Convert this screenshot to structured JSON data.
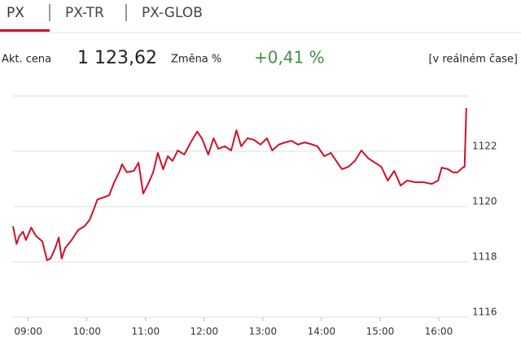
{
  "tabs": [
    "PX",
    "PX-TR",
    "PX-GLOB"
  ],
  "quote": {
    "price_label": "Akt. cena",
    "price": "1 123,62",
    "change_label": "Změna %",
    "change": "+0,41 %",
    "realtime": "[v reálném čase]"
  },
  "chart_data": {
    "type": "line",
    "color": "#d0102a",
    "grid": true,
    "x": [
      8.74,
      8.8,
      8.85,
      8.91,
      8.96,
      9.05,
      9.13,
      9.24,
      9.32,
      9.38,
      9.46,
      9.52,
      9.57,
      9.63,
      9.74,
      9.85,
      9.96,
      10.05,
      10.13,
      10.18,
      10.27,
      10.38,
      10.46,
      10.55,
      10.6,
      10.68,
      10.8,
      10.88,
      10.96,
      11.05,
      11.13,
      11.21,
      11.3,
      11.38,
      11.46,
      11.55,
      11.66,
      11.77,
      11.88,
      11.96,
      12.07,
      12.16,
      12.24,
      12.35,
      12.46,
      12.55,
      12.63,
      12.74,
      12.85,
      12.96,
      13.07,
      13.16,
      13.27,
      13.38,
      13.49,
      13.6,
      13.71,
      13.82,
      13.93,
      14.05,
      14.16,
      14.27,
      14.35,
      14.46,
      14.57,
      14.68,
      14.8,
      14.91,
      15.02,
      15.13,
      15.24,
      15.35,
      15.46,
      15.6,
      15.74,
      15.88,
      15.99,
      16.05,
      16.16,
      16.24,
      16.32,
      16.41,
      16.44,
      16.47
    ],
    "values": [
      1119.29,
      1118.65,
      1118.94,
      1119.09,
      1118.79,
      1119.24,
      1118.94,
      1118.74,
      1118.06,
      1118.12,
      1118.5,
      1118.88,
      1118.12,
      1118.5,
      1118.79,
      1119.15,
      1119.29,
      1119.53,
      1119.97,
      1120.26,
      1120.32,
      1120.41,
      1120.85,
      1121.24,
      1121.53,
      1121.24,
      1121.29,
      1121.59,
      1120.47,
      1120.85,
      1121.24,
      1121.94,
      1121.35,
      1121.82,
      1121.65,
      1122.03,
      1121.88,
      1122.32,
      1122.71,
      1122.47,
      1121.88,
      1122.47,
      1122.09,
      1122.18,
      1122.03,
      1122.76,
      1122.18,
      1122.47,
      1122.41,
      1122.24,
      1122.47,
      1122.03,
      1122.24,
      1122.32,
      1122.38,
      1122.24,
      1122.32,
      1122.26,
      1122.18,
      1121.82,
      1121.94,
      1121.59,
      1121.35,
      1121.44,
      1121.65,
      1122.03,
      1121.74,
      1121.59,
      1121.44,
      1120.94,
      1121.29,
      1120.76,
      1120.94,
      1120.88,
      1120.88,
      1120.82,
      1120.94,
      1121.41,
      1121.35,
      1121.24,
      1121.24,
      1121.41,
      1121.44,
      1123.56
    ],
    "xlim": [
      8.74,
      16.5
    ],
    "xticks": [
      {
        "value": 9,
        "label": "09:00"
      },
      {
        "value": 10,
        "label": "10:00"
      },
      {
        "value": 11,
        "label": "11:00"
      },
      {
        "value": 12,
        "label": "12:00"
      },
      {
        "value": 13,
        "label": "13:00"
      },
      {
        "value": 14,
        "label": "14:00"
      },
      {
        "value": 15,
        "label": "15:00"
      },
      {
        "value": 16,
        "label": "16:00"
      }
    ],
    "ylim": [
      1116,
      1124
    ],
    "yticks": [
      1116,
      1118,
      1120,
      1122
    ]
  }
}
